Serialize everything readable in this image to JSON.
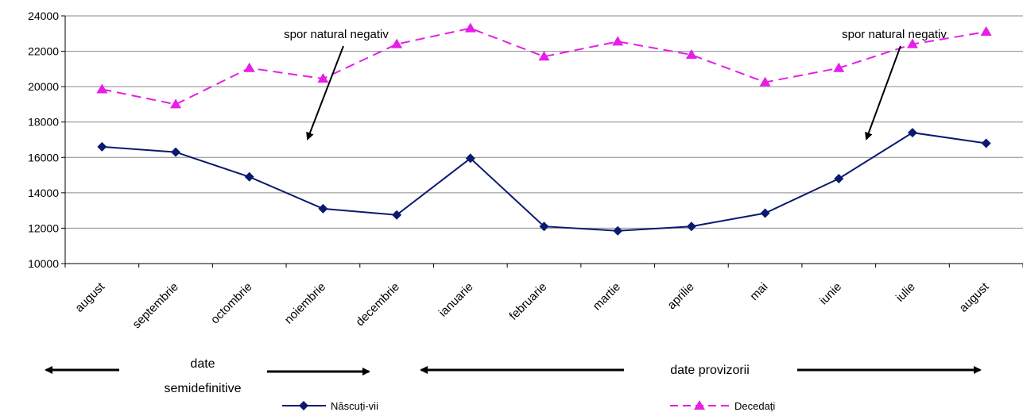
{
  "chart_data": {
    "type": "line",
    "categories": [
      "august",
      "septembrie",
      "octombrie",
      "noiembrie",
      "decembrie",
      "ianuarie",
      "februarie",
      "martie",
      "aprilie",
      "mai",
      "iunie",
      "iulie",
      "august"
    ],
    "series": [
      {
        "name": "Născuți-vii",
        "color": "#0b1a6e",
        "marker": "diamond",
        "dash": "solid",
        "values": [
          16600,
          16300,
          14900,
          13100,
          12750,
          15950,
          12100,
          11850,
          12100,
          12850,
          14800,
          17400,
          16800
        ]
      },
      {
        "name": "Decedați",
        "color": "#e61ee6",
        "marker": "triangle",
        "dash": "dashed",
        "values": [
          19850,
          19000,
          21050,
          20450,
          22400,
          23300,
          21700,
          22550,
          21800,
          20250,
          21050,
          22400,
          23100
        ]
      }
    ],
    "ylim": [
      10000,
      24000
    ],
    "yticks": [
      10000,
      12000,
      14000,
      16000,
      18000,
      20000,
      22000,
      24000
    ],
    "grid": true,
    "legend_position": "bottom",
    "title": "",
    "xlabel": "",
    "ylabel": "",
    "annotations": [
      "spor natural negativ",
      "spor natural negativ"
    ],
    "period_labels": {
      "semidefinitive": [
        "date",
        "semidefinitive"
      ],
      "provizorii": "date provizorii"
    }
  }
}
